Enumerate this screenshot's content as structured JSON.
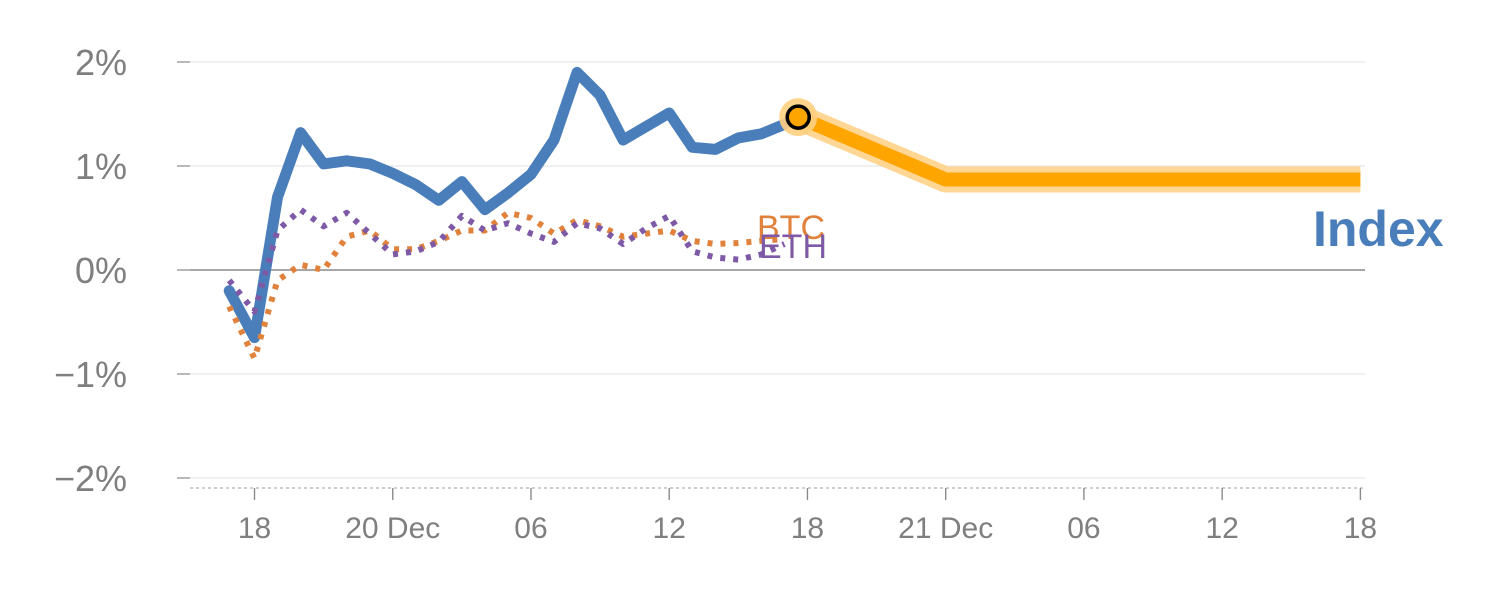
{
  "chart_data": {
    "type": "line",
    "title": "",
    "xlabel": "",
    "ylabel": "",
    "y_unit": "%",
    "ylim": [
      -2,
      2
    ],
    "y_ticks": [
      {
        "value": 2,
        "label": "2%"
      },
      {
        "value": 1,
        "label": "1%"
      },
      {
        "value": 0,
        "label": "0%"
      },
      {
        "value": -1,
        "label": "−1%"
      },
      {
        "value": -2,
        "label": "−2%"
      }
    ],
    "x_unit": "hours",
    "xlim": [
      15.2,
      66.2
    ],
    "x_ticks": [
      {
        "value": 18,
        "label": "18"
      },
      {
        "value": 24,
        "label": "20 Dec"
      },
      {
        "value": 30,
        "label": "06"
      },
      {
        "value": 36,
        "label": "12"
      },
      {
        "value": 42,
        "label": "18"
      },
      {
        "value": 48,
        "label": "21 Dec"
      },
      {
        "value": 54,
        "label": "06"
      },
      {
        "value": 60,
        "label": "12"
      },
      {
        "value": 66,
        "label": "18"
      }
    ],
    "grid": true,
    "legend": "inline labels at line ends",
    "series": [
      {
        "name": "Index",
        "color": "#4a7ebb",
        "style": "solid",
        "x": [
          16.9,
          18.0,
          19.0,
          20.0,
          21.0,
          22.0,
          23.0,
          24.0,
          25.0,
          26.0,
          27.0,
          28.0,
          29.0,
          30.0,
          31.0,
          32.0,
          33.0,
          34.0,
          35.0,
          36.0,
          37.0,
          38.0,
          39.0,
          40.0,
          41.0,
          41.6
        ],
        "y": [
          -0.2,
          -0.65,
          0.7,
          1.32,
          1.02,
          1.05,
          1.02,
          0.93,
          0.82,
          0.67,
          0.85,
          0.58,
          0.74,
          0.92,
          1.25,
          1.9,
          1.68,
          1.25,
          1.38,
          1.51,
          1.18,
          1.16,
          1.27,
          1.31,
          1.4,
          1.47
        ]
      },
      {
        "name": "BTC",
        "color": "#e0823b",
        "style": "dotted",
        "x": [
          16.9,
          18.0,
          19.0,
          20.0,
          21.0,
          22.0,
          23.0,
          24.0,
          25.0,
          26.0,
          27.0,
          28.0,
          29.0,
          30.0,
          31.0,
          32.0,
          33.0,
          34.0,
          35.0,
          36.0,
          37.0,
          38.0,
          39.0,
          40.0,
          41.0
        ],
        "y": [
          -0.35,
          -0.85,
          -0.1,
          0.05,
          0.0,
          0.32,
          0.38,
          0.2,
          0.2,
          0.28,
          0.38,
          0.38,
          0.55,
          0.5,
          0.35,
          0.48,
          0.42,
          0.32,
          0.35,
          0.38,
          0.28,
          0.25,
          0.26,
          0.28,
          0.3
        ]
      },
      {
        "name": "ETH",
        "color": "#7e5aa6",
        "style": "dotted",
        "x": [
          16.9,
          18.0,
          19.0,
          20.0,
          21.0,
          22.0,
          23.0,
          24.0,
          25.0,
          26.0,
          27.0,
          28.0,
          29.0,
          30.0,
          31.0,
          32.0,
          33.0,
          34.0,
          35.0,
          36.0,
          37.0,
          38.0,
          39.0,
          40.0,
          41.0
        ],
        "y": [
          -0.1,
          -0.4,
          0.38,
          0.58,
          0.42,
          0.55,
          0.35,
          0.15,
          0.18,
          0.27,
          0.52,
          0.38,
          0.45,
          0.35,
          0.27,
          0.45,
          0.4,
          0.25,
          0.4,
          0.52,
          0.18,
          0.12,
          0.1,
          0.15,
          0.25
        ]
      },
      {
        "name": "",
        "color": "#ffa500",
        "style": "thick",
        "x": [
          41.6,
          48.0,
          66.0
        ],
        "y": [
          1.47,
          0.87,
          0.87
        ]
      }
    ],
    "marker": {
      "x": 41.6,
      "y": 1.47,
      "fill": "#ffa500",
      "stroke": "#000000"
    }
  },
  "labels": {
    "btc": "BTC",
    "eth": "ETH",
    "index": "Index"
  }
}
